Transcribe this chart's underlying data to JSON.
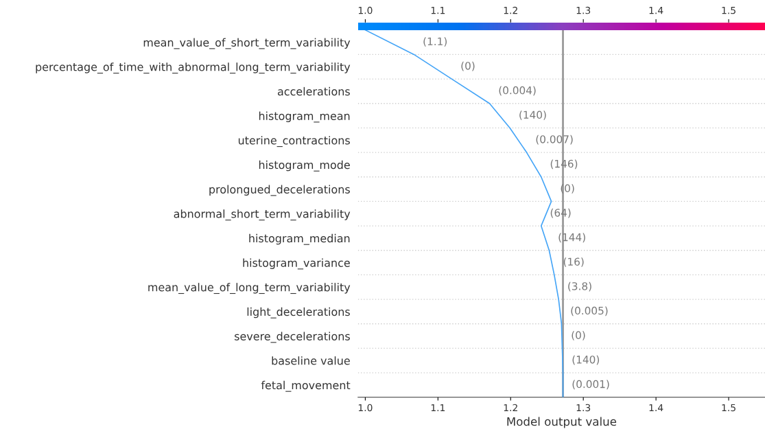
{
  "chart_data": {
    "type": "line",
    "orientation": "horizontal",
    "xlabel": "Model output value",
    "categories": [
      null,
      "mean_value_of_short_term_variability",
      "percentage_of_time_with_abnormal_long_term_variability",
      "accelerations",
      "histogram_mean",
      "uterine_contractions",
      "histogram_mode",
      "prolongued_decelerations",
      "abnormal_short_term_variability",
      "histogram_median",
      "histogram_variance",
      "mean_value_of_long_term_variability",
      "light_decelerations",
      "severe_decelerations",
      "baseline value",
      "fetal_movement"
    ],
    "series": [
      {
        "color": "#45a5f7",
        "values": [
          1.0,
          1.067,
          1.119,
          1.171,
          1.199,
          1.222,
          1.242,
          1.256,
          1.242,
          1.253,
          1.26,
          1.266,
          1.27,
          1.271,
          1.272,
          1.272
        ]
      }
    ],
    "annotations": [
      "(1.1)",
      "(0)",
      "(0.004)",
      "(140)",
      "(0.007)",
      "(146)",
      "(0)",
      "(64)",
      "(144)",
      "(16)",
      "(3.8)",
      "(0.005)",
      "(0)",
      "(140)",
      "(0.001)"
    ],
    "xlim": [
      0.99,
      1.55
    ],
    "xticks": [
      {
        "value": 1.0,
        "label": "1.0"
      },
      1.1,
      1.2,
      1.3,
      1.4,
      1.5
    ],
    "clim": [
      0.99,
      1.55
    ],
    "cticks": [
      {
        "value": 1.0,
        "label": "1.0"
      },
      1.1,
      1.2,
      1.3,
      1.4,
      1.5
    ],
    "ref_lines": [
      {
        "axis": "x",
        "value": 1.272,
        "color": "#999999"
      }
    ],
    "grid": "y",
    "line_style": "solid",
    "marker": "none"
  }
}
